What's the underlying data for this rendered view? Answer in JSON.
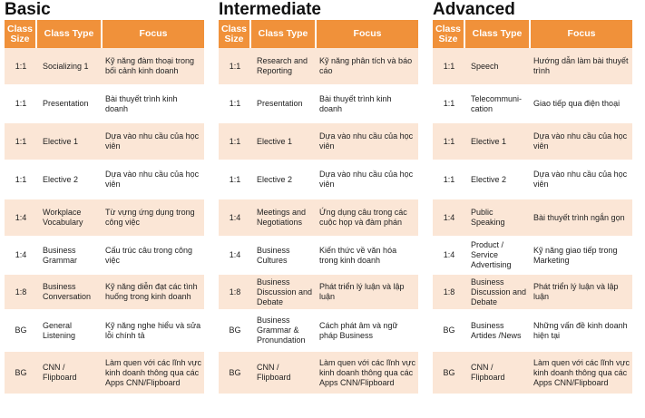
{
  "headers": {
    "size": "Class Size",
    "type": "Class Type",
    "focus": "Focus"
  },
  "panels": [
    {
      "title": "Basic",
      "rows": [
        {
          "size": "1:1",
          "type": "Socializing 1",
          "focus": "Kỹ năng đàm thoại trong bối cảnh kinh doanh"
        },
        {
          "size": "1:1",
          "type": "Presentation",
          "focus": "Bài thuyết trình kinh doanh"
        },
        {
          "size": "1:1",
          "type": "Elective 1",
          "focus": "Dựa vào nhu cầu của học viên"
        },
        {
          "size": "1:1",
          "type": "Elective 2",
          "focus": "Dựa vào nhu cầu của học viên"
        },
        {
          "size": "1:4",
          "type": "Workplace Vocabulary",
          "focus": "Từ vựng ứng dụng trong công việc"
        },
        {
          "size": "1:4",
          "type": "Business Grammar",
          "focus": "Cấu trúc câu trong công việc"
        },
        {
          "size": "1:8",
          "type": "Business Conversation",
          "focus": "Kỹ năng diễn đạt các tình huống trong kinh doanh"
        },
        {
          "size": "BG",
          "type": "General Listening",
          "focus": "Kỹ năng nghe hiểu và sửa lỗi chính tả"
        },
        {
          "size": "BG",
          "type": "CNN / Flipboard",
          "focus": "Làm quen với các lĩnh vực kinh doanh thông qua các Apps CNN/Flipboard"
        }
      ]
    },
    {
      "title": "Intermediate",
      "rows": [
        {
          "size": "1:1",
          "type": "Research and Reporting",
          "focus": "Kỹ năng phân tích và báo cáo"
        },
        {
          "size": "1:1",
          "type": "Presentation",
          "focus": "Bài thuyết trình kinh doanh"
        },
        {
          "size": "1:1",
          "type": "Elective 1",
          "focus": "Dựa vào nhu cầu của học viên"
        },
        {
          "size": "1:1",
          "type": "Elective 2",
          "focus": "Dựa vào nhu cầu của học viên"
        },
        {
          "size": "1:4",
          "type": "Meetings and Negotiations",
          "focus": "Ứng dụng câu trong các cuộc họp và đàm phán"
        },
        {
          "size": "1:4",
          "type": "Business Cultures",
          "focus": "Kiến thức về văn hóa trong kinh doanh"
        },
        {
          "size": "1:8",
          "type": "Business Discussion and Debate",
          "focus": "Phát triển lý luận và lập luận"
        },
        {
          "size": "BG",
          "type": "Business Grammar & Pronundation",
          "focus": "Cách phát âm và ngữ pháp Business"
        },
        {
          "size": "BG",
          "type": "CNN / Flipboard",
          "focus": "Làm quen với các lĩnh vực kinh doanh thông qua các Apps CNN/Flipboard"
        }
      ]
    },
    {
      "title": "Advanced",
      "rows": [
        {
          "size": "1:1",
          "type": "Speech",
          "focus": "Hướng dẫn làm bài thuyết trình"
        },
        {
          "size": "1:1",
          "type": "Telecommuni- cation",
          "focus": "Giao tiếp qua điện thoại"
        },
        {
          "size": "1:1",
          "type": "Elective 1",
          "focus": "Dựa vào nhu cầu của học viên"
        },
        {
          "size": "1:1",
          "type": "Elective 2",
          "focus": "Dựa vào nhu cầu của học viên"
        },
        {
          "size": "1:4",
          "type": "Public Speaking",
          "focus": "Bài thuyết trình ngắn gọn"
        },
        {
          "size": "1:4",
          "type": "Product / Service Advertising",
          "focus": "Kỹ năng giao tiếp trong Marketing"
        },
        {
          "size": "1:8",
          "type": "Business Discussion and Debate",
          "focus": "Phát triển lý luận và lập luận"
        },
        {
          "size": "BG",
          "type": "Business Artides /News",
          "focus": "Những vấn đề kinh doanh hiện tại"
        },
        {
          "size": "BG",
          "type": "CNN / Flipboard",
          "focus": "Làm quen với các lĩnh vực kinh doanh thông qua các Apps CNN/Flipboard"
        }
      ]
    }
  ]
}
